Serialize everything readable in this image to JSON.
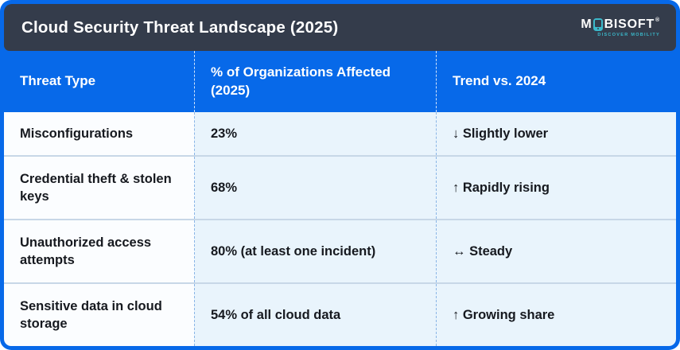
{
  "header": {
    "title": "Cloud Security Threat Landscape (2025)",
    "logo": {
      "prefix": "M",
      "suffix": "BISOFT",
      "registered_mark": "®",
      "tagline": "DISCOVER MOBILITY",
      "icon": "phone-icon",
      "accent_color": "#3bb8ca"
    }
  },
  "table": {
    "columns": [
      "Threat Type",
      "% of Organizations Affected (2025)",
      "Trend vs. 2024"
    ],
    "rows": [
      {
        "threat_type": "Misconfigurations",
        "pct_affected": "23%",
        "trend": "↓ Slightly lower"
      },
      {
        "threat_type": "Credential theft & stolen keys",
        "pct_affected": "68%",
        "trend": "↑ Rapidly rising"
      },
      {
        "threat_type": "Unauthorized access attempts",
        "pct_affected": "80% (at least one incident)",
        "trend": "↔ Steady"
      },
      {
        "threat_type": "Sensitive data in cloud storage",
        "pct_affected": "54% of all cloud data",
        "trend": "↑ Growing share"
      }
    ]
  },
  "colors": {
    "frame_blue": "#0769e9",
    "title_bar_dark": "#343c4b",
    "header_row_blue": "#0769e9",
    "threat_cell_bg": "#fbfdff",
    "data_cell_bg": "#e9f4fc",
    "row_divider": "#c7d7e7",
    "body_text": "#16191f",
    "logo_teal": "#3bb8ca"
  },
  "chart_data": {
    "type": "table",
    "title": "Cloud Security Threat Landscape (2025)",
    "columns": [
      "Threat Type",
      "% of Organizations Affected (2025)",
      "Trend vs. 2024"
    ],
    "rows": [
      [
        "Misconfigurations",
        "23%",
        "↓ Slightly lower"
      ],
      [
        "Credential theft & stolen keys",
        "68%",
        "↑ Rapidly rising"
      ],
      [
        "Unauthorized access attempts",
        "80% (at least one incident)",
        "↔ Steady"
      ],
      [
        "Sensitive data in cloud storage",
        "54% of all cloud data",
        "↑ Growing share"
      ]
    ],
    "numeric_values": {
      "misconfigurations_pct": 23,
      "credential_theft_pct": 68,
      "unauthorized_access_pct": 80,
      "sensitive_data_pct": 54
    }
  }
}
